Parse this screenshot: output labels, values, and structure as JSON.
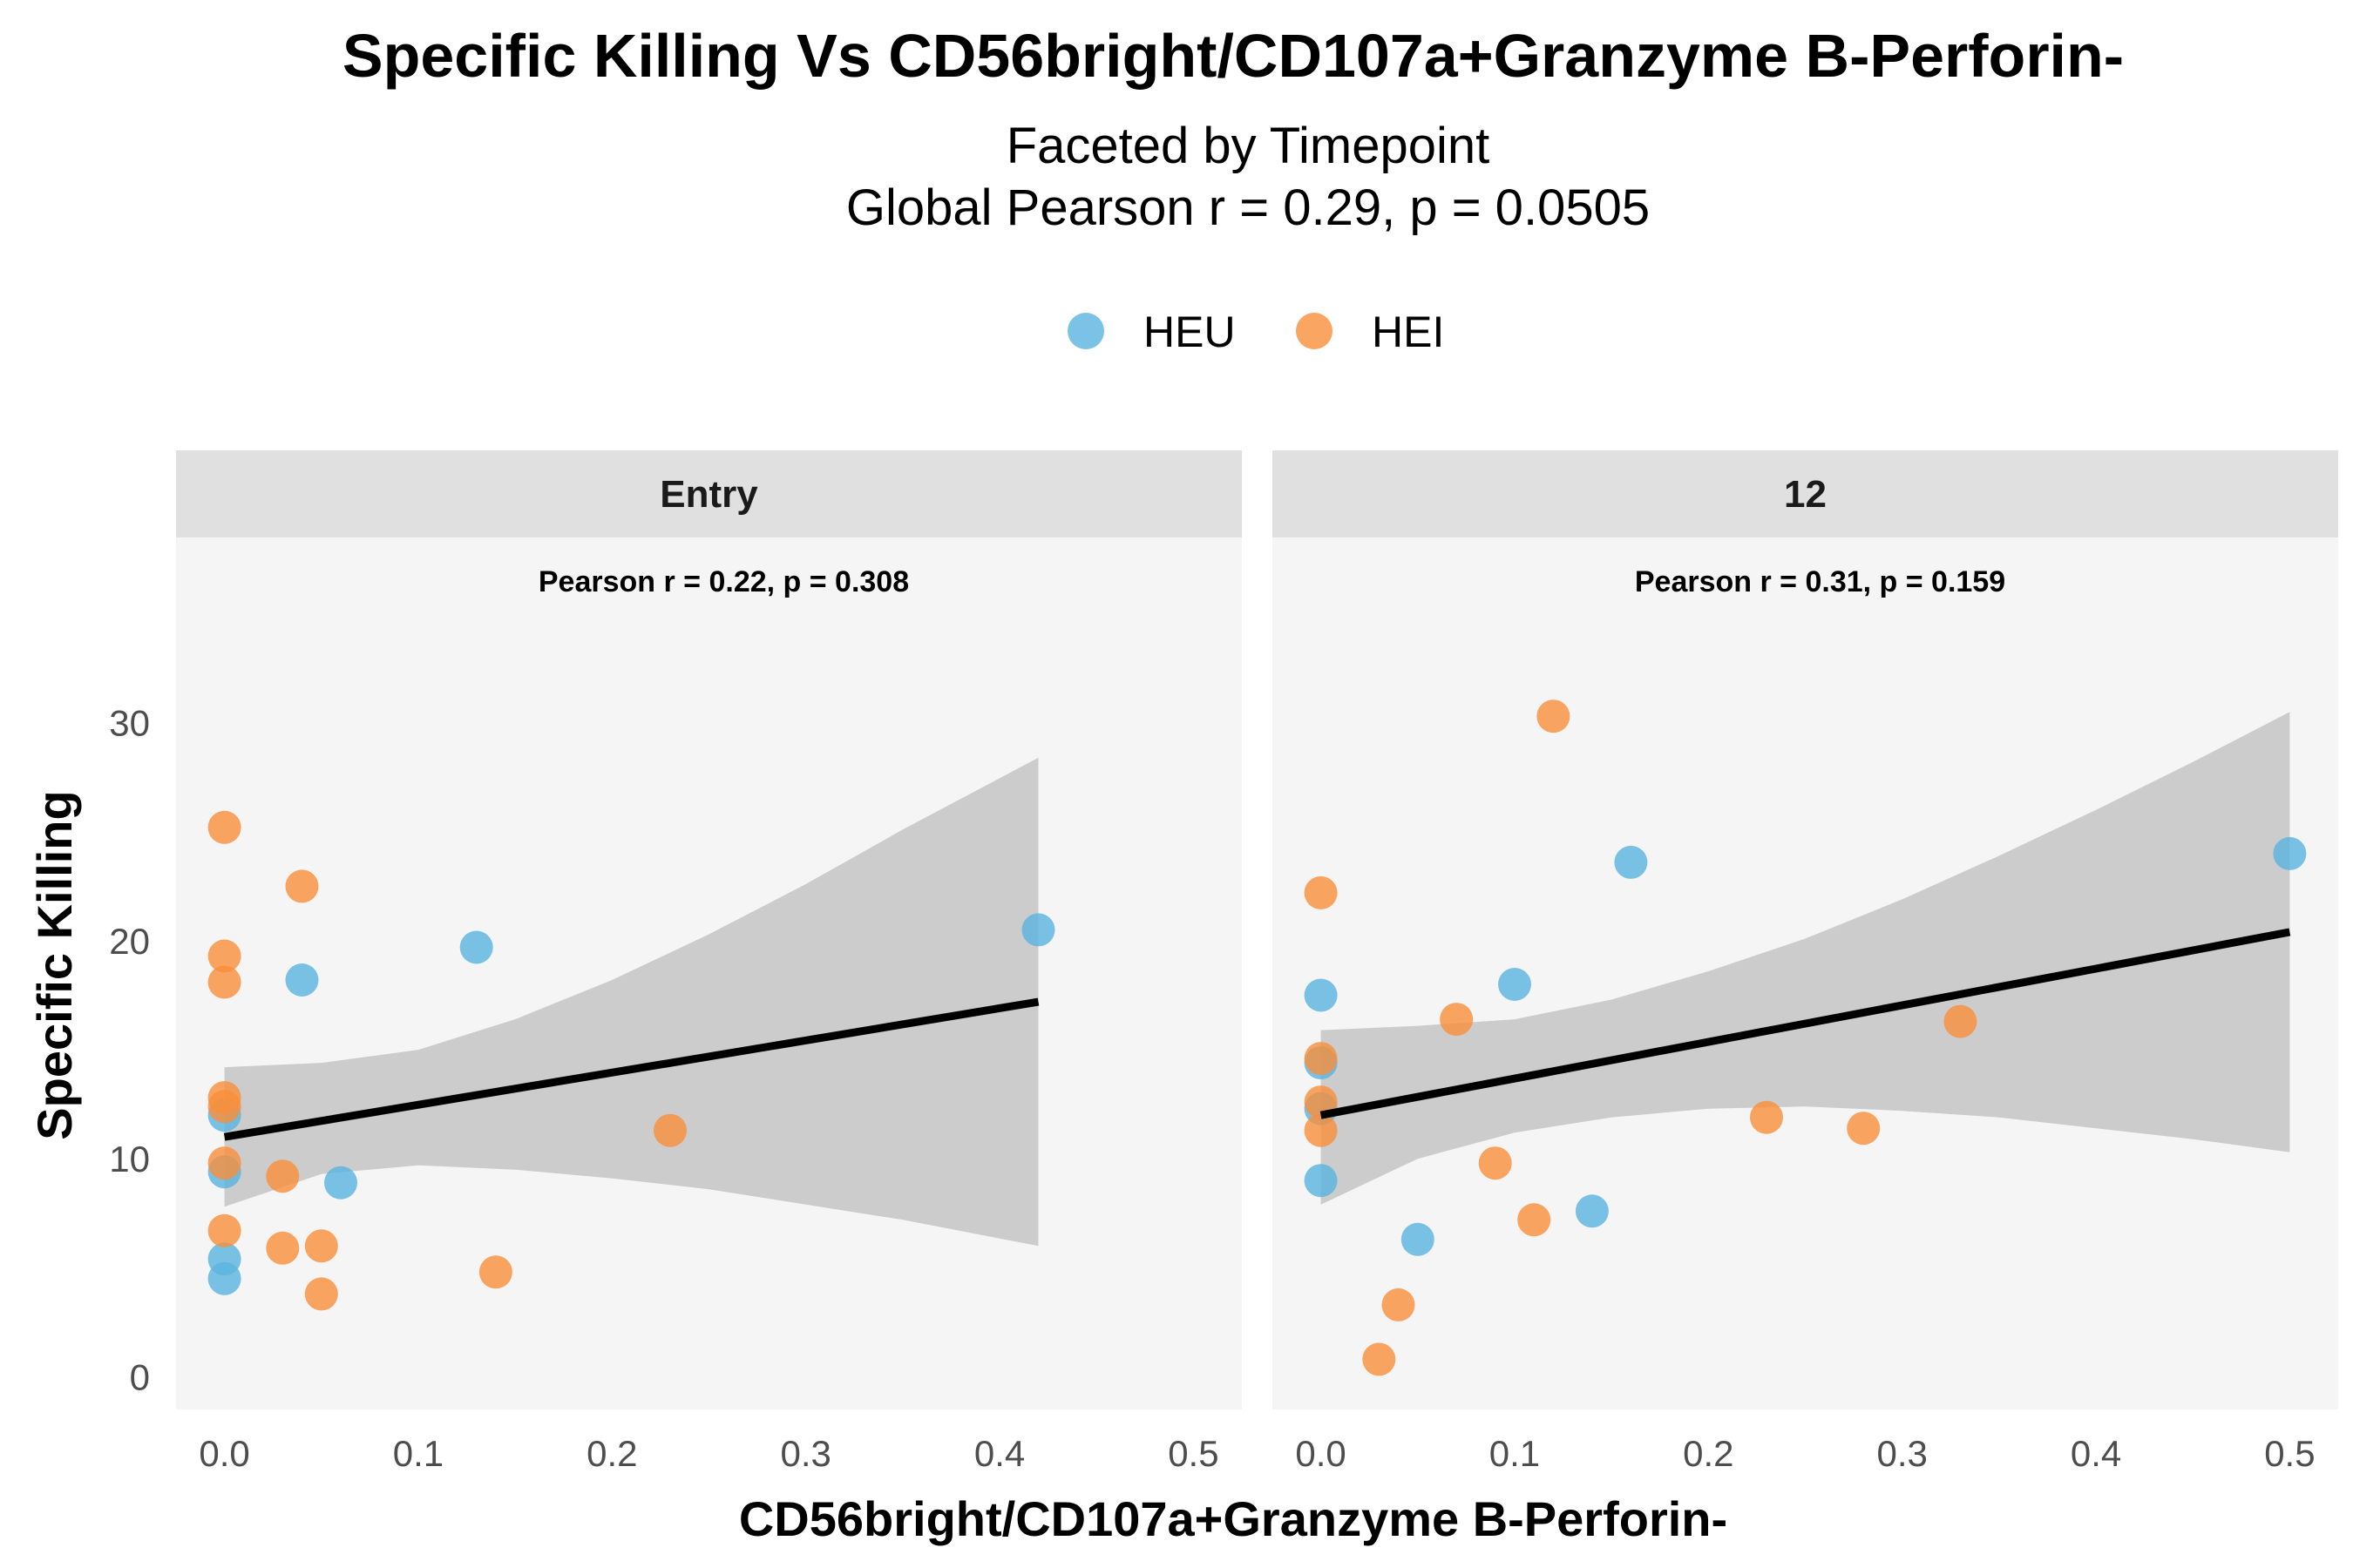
{
  "chart_data": {
    "type": "scatter",
    "title": "Specific Killing Vs CD56bright/CD107a+Granzyme B-Perforin-",
    "subtitle_lines": [
      "Faceted by Timepoint",
      "Global Pearson r = 0.29, p = 0.0505"
    ],
    "xlabel": "CD56bright/CD107a+Granzyme B-Perforin-",
    "ylabel": "Specific Killing",
    "xlim": [
      -0.025,
      0.525
    ],
    "ylim": [
      -1.5,
      38.5
    ],
    "x_ticks": [
      0.0,
      0.1,
      0.2,
      0.3,
      0.4,
      0.5
    ],
    "x_tick_labels": [
      "0.0",
      "0.1",
      "0.2",
      "0.3",
      "0.4",
      "0.5"
    ],
    "y_ticks": [
      0,
      10,
      20,
      30
    ],
    "y_tick_labels": [
      "0",
      "10",
      "20",
      "30"
    ],
    "legend_position": "top",
    "legend": [
      {
        "name": "HEU",
        "color": "#5ab4e0"
      },
      {
        "name": "HEI",
        "color": "#f98e3b"
      }
    ],
    "panel_background": "#f5f5f5",
    "strip_background": "#e0e0e0",
    "ribbon_color": "#c8c8c8",
    "fit_color": "#000000",
    "grid": false,
    "facets": [
      {
        "label": "Entry",
        "annotation": "Pearson r = 0.22, p = 0.308",
        "fit": {
          "x": [
            0.0,
            0.42
          ],
          "y": [
            11.0,
            17.2
          ]
        },
        "ribbon": {
          "x": [
            0.0,
            0.05,
            0.1,
            0.15,
            0.2,
            0.25,
            0.3,
            0.35,
            0.42
          ],
          "lower": [
            7.8,
            9.3,
            9.7,
            9.5,
            9.1,
            8.6,
            7.9,
            7.2,
            6.0
          ],
          "upper": [
            14.2,
            14.4,
            15.0,
            16.4,
            18.2,
            20.3,
            22.6,
            25.1,
            28.4
          ]
        },
        "series": [
          {
            "name": "HEU",
            "points": [
              [
                0.0,
                12.0
              ],
              [
                0.0,
                9.4
              ],
              [
                0.0,
                5.4
              ],
              [
                0.0,
                4.5
              ],
              [
                0.04,
                18.2
              ],
              [
                0.06,
                8.9
              ],
              [
                0.13,
                19.7
              ],
              [
                0.42,
                20.5
              ]
            ]
          },
          {
            "name": "HEI",
            "points": [
              [
                0.0,
                25.2
              ],
              [
                0.0,
                19.3
              ],
              [
                0.0,
                18.1
              ],
              [
                0.0,
                12.8
              ],
              [
                0.0,
                12.4
              ],
              [
                0.0,
                9.8
              ],
              [
                0.0,
                6.7
              ],
              [
                0.03,
                9.2
              ],
              [
                0.03,
                5.9
              ],
              [
                0.04,
                22.5
              ],
              [
                0.05,
                6.0
              ],
              [
                0.05,
                3.8
              ],
              [
                0.14,
                4.8
              ],
              [
                0.23,
                11.3
              ]
            ]
          }
        ]
      },
      {
        "label": "12",
        "annotation": "Pearson r = 0.31, p = 0.159",
        "fit": {
          "x": [
            0.0,
            0.5
          ],
          "y": [
            12.0,
            20.4
          ]
        },
        "ribbon": {
          "x": [
            0.0,
            0.05,
            0.1,
            0.15,
            0.2,
            0.25,
            0.3,
            0.35,
            0.4,
            0.45,
            0.5
          ],
          "lower": [
            7.9,
            10.0,
            11.2,
            11.9,
            12.3,
            12.4,
            12.2,
            11.9,
            11.4,
            10.9,
            10.3
          ],
          "upper": [
            15.9,
            16.1,
            16.4,
            17.3,
            18.6,
            20.1,
            21.9,
            23.9,
            26.0,
            28.2,
            30.5
          ]
        },
        "series": [
          {
            "name": "HEU",
            "points": [
              [
                0.0,
                17.5
              ],
              [
                0.0,
                14.4
              ],
              [
                0.0,
                12.3
              ],
              [
                0.0,
                9.0
              ],
              [
                0.05,
                6.3
              ],
              [
                0.1,
                18.0
              ],
              [
                0.14,
                7.6
              ],
              [
                0.16,
                23.6
              ],
              [
                0.5,
                24.0
              ]
            ]
          },
          {
            "name": "HEI",
            "points": [
              [
                0.0,
                22.2
              ],
              [
                0.0,
                14.6
              ],
              [
                0.0,
                12.6
              ],
              [
                0.0,
                11.3
              ],
              [
                0.03,
                0.8
              ],
              [
                0.04,
                3.3
              ],
              [
                0.07,
                16.4
              ],
              [
                0.09,
                9.8
              ],
              [
                0.11,
                7.2
              ],
              [
                0.12,
                30.3
              ],
              [
                0.23,
                11.9
              ],
              [
                0.28,
                11.4
              ],
              [
                0.33,
                16.3
              ]
            ]
          }
        ]
      }
    ]
  }
}
